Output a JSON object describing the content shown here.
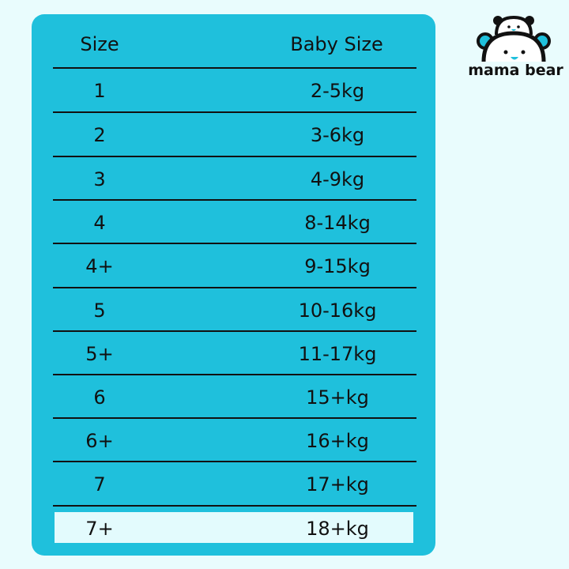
{
  "brand": {
    "name": "mama bear",
    "accent": "#1fc0dc",
    "background": "#e9fcfd"
  },
  "table": {
    "headers": [
      "Size",
      "Baby Size"
    ],
    "rows": [
      [
        "1",
        "2-5kg"
      ],
      [
        "2",
        "3-6kg"
      ],
      [
        "3",
        "4-9kg"
      ],
      [
        "4",
        "8-14kg"
      ],
      [
        "4+",
        "9-15kg"
      ],
      [
        "5",
        "10-16kg"
      ],
      [
        "5+",
        "11-17kg"
      ],
      [
        "6",
        "15+kg"
      ],
      [
        "6+",
        "16+kg"
      ],
      [
        "7",
        "17+kg"
      ],
      [
        "7+",
        "18+kg"
      ]
    ],
    "highlighted_row": 10
  }
}
